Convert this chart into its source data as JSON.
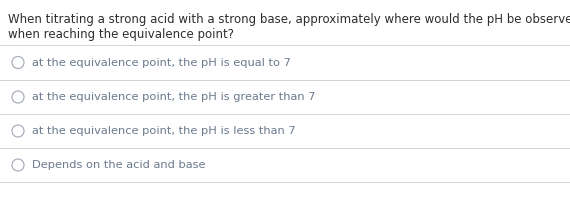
{
  "background_color": "#ffffff",
  "question_line1": "When titrating a strong acid with a strong base, approximately where would the pH be observed",
  "question_line2": "when reaching the equivalence point?",
  "question_color": "#2d2d2d",
  "question_fontsize": 8.5,
  "options": [
    "at the equivalence point, the pH is equal to 7",
    "at the equivalence point, the pH is greater than 7",
    "at the equivalence point, the pH is less than 7",
    "Depends on the acid and base"
  ],
  "option_color": "#6b7a8d",
  "option_fontsize": 8.2,
  "circle_color": "#aab0bb",
  "line_color": "#d0d3d8",
  "line_width": 0.7
}
